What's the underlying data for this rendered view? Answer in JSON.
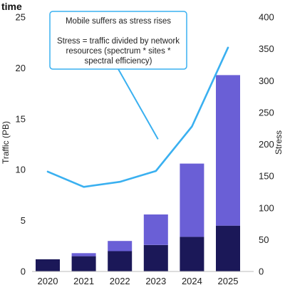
{
  "chart_data": {
    "type": "bar",
    "title": "time",
    "categories": [
      "2020",
      "2021",
      "2022",
      "2023",
      "2024",
      "2025"
    ],
    "series": [
      {
        "values": [
          1.2,
          1.5,
          2.0,
          2.6,
          3.4,
          4.5
        ],
        "color": "#1b1858",
        "axis": "left"
      },
      {
        "values": [
          0.0,
          0.3,
          1.0,
          3.0,
          7.2,
          14.8
        ],
        "color": "#6a5fd6",
        "axis": "left"
      },
      {
        "type": "line",
        "values": [
          157,
          133,
          141,
          158,
          228,
          352
        ],
        "color": "#3ab0f0",
        "axis": "right"
      }
    ],
    "ylabel": "Traffic (PB)",
    "y2label": "Stress",
    "ylim": [
      0,
      25
    ],
    "y2lim": [
      0,
      400
    ],
    "yticks": [
      0,
      5,
      10,
      15,
      20,
      25
    ],
    "y2ticks": [
      0,
      50,
      100,
      150,
      200,
      250,
      300,
      350,
      400
    ],
    "grid": false,
    "annotation": {
      "lines": [
        "Mobile suffers as stress rises",
        "",
        "Stress = traffic divided by network",
        "resources (spectrum * sites *",
        "spectral efficiency)"
      ],
      "border_color": "#3ab0f0",
      "pointer_target": {
        "category": "2023",
        "value": 208
      }
    }
  }
}
